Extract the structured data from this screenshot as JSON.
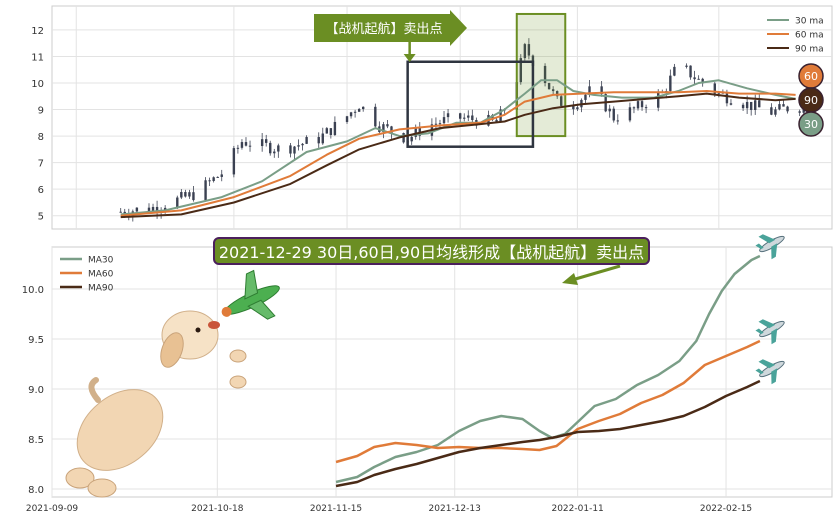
{
  "chart_data": [
    {
      "type": "line",
      "subtype": "candlestick",
      "x_range": [
        "2021-09-20",
        "2022-03-10"
      ],
      "ylim": [
        4.5,
        12.9
      ],
      "yticks": [
        5,
        6,
        7,
        8,
        9,
        10,
        11,
        12
      ],
      "grid": true,
      "legend_position": "top-right",
      "price_trend": [
        [
          "2021-09-20",
          5.15
        ],
        [
          "2021-09-28",
          5.3
        ],
        [
          "2021-10-08",
          5.8
        ],
        [
          "2021-10-15",
          6.6
        ],
        [
          "2021-10-20",
          7.8
        ],
        [
          "2021-10-30",
          7.5
        ],
        [
          "2021-11-08",
          7.9
        ],
        [
          "2021-11-14",
          8.6
        ],
        [
          "2021-11-18",
          9.2
        ],
        [
          "2021-11-23",
          8.4
        ],
        [
          "2021-11-30",
          7.9
        ],
        [
          "2021-12-05",
          8.4
        ],
        [
          "2021-12-12",
          8.7
        ],
        [
          "2021-12-18",
          8.6
        ],
        [
          "2021-12-22",
          8.5
        ],
        [
          "2021-12-26",
          9.6
        ],
        [
          "2021-12-29",
          11.3
        ],
        [
          "2022-01-02",
          10.4
        ],
        [
          "2022-01-06",
          9.3
        ],
        [
          "2022-01-10",
          9.2
        ],
        [
          "2022-01-15",
          9.8
        ],
        [
          "2022-01-20",
          8.7
        ],
        [
          "2022-01-25",
          9.0
        ],
        [
          "2022-02-01",
          9.6
        ],
        [
          "2022-02-05",
          10.7
        ],
        [
          "2022-02-10",
          10.1
        ],
        [
          "2022-02-15",
          9.6
        ],
        [
          "2022-02-22",
          9.2
        ],
        [
          "2022-02-28",
          8.9
        ],
        [
          "2022-03-05",
          9.1
        ]
      ],
      "series": [
        {
          "name": "30 ma",
          "color": "#7a9e87",
          "values": [
            [
              "2021-09-20",
              5.05
            ],
            [
              "2021-10-01",
              5.2
            ],
            [
              "2021-10-15",
              5.7
            ],
            [
              "2021-10-25",
              6.3
            ],
            [
              "2021-11-05",
              7.4
            ],
            [
              "2021-11-15",
              7.8
            ],
            [
              "2021-11-22",
              8.3
            ],
            [
              "2021-11-28",
              8.0
            ],
            [
              "2021-12-05",
              8.1
            ],
            [
              "2021-12-12",
              8.5
            ],
            [
              "2021-12-18",
              8.5
            ],
            [
              "2021-12-24",
              9.0
            ],
            [
              "2021-12-29",
              9.6
            ],
            [
              "2022-01-02",
              10.1
            ],
            [
              "2022-01-06",
              10.1
            ],
            [
              "2022-01-10",
              9.7
            ],
            [
              "2022-01-15",
              9.55
            ],
            [
              "2022-01-22",
              9.45
            ],
            [
              "2022-01-30",
              9.45
            ],
            [
              "2022-02-05",
              9.7
            ],
            [
              "2022-02-10",
              10.0
            ],
            [
              "2022-02-15",
              10.1
            ],
            [
              "2022-02-22",
              9.8
            ],
            [
              "2022-03-01",
              9.55
            ],
            [
              "2022-03-06",
              9.4
            ]
          ]
        },
        {
          "name": "60 ma",
          "color": "#e07b39",
          "values": [
            [
              "2021-09-20",
              5.0
            ],
            [
              "2021-10-05",
              5.2
            ],
            [
              "2021-10-18",
              5.7
            ],
            [
              "2021-11-01",
              6.5
            ],
            [
              "2021-11-10",
              7.3
            ],
            [
              "2021-11-18",
              7.9
            ],
            [
              "2021-11-28",
              8.25
            ],
            [
              "2021-12-08",
              8.4
            ],
            [
              "2021-12-18",
              8.5
            ],
            [
              "2021-12-24",
              8.8
            ],
            [
              "2021-12-29",
              9.3
            ],
            [
              "2022-01-05",
              9.55
            ],
            [
              "2022-01-12",
              9.6
            ],
            [
              "2022-01-20",
              9.65
            ],
            [
              "2022-01-28",
              9.65
            ],
            [
              "2022-02-05",
              9.65
            ],
            [
              "2022-02-12",
              9.7
            ],
            [
              "2022-02-20",
              9.6
            ],
            [
              "2022-03-01",
              9.6
            ],
            [
              "2022-03-06",
              9.55
            ]
          ]
        },
        {
          "name": "90 ma",
          "color": "#4a2a16",
          "values": [
            [
              "2021-09-20",
              4.95
            ],
            [
              "2021-10-05",
              5.05
            ],
            [
              "2021-10-18",
              5.5
            ],
            [
              "2021-11-01",
              6.2
            ],
            [
              "2021-11-10",
              6.9
            ],
            [
              "2021-11-18",
              7.5
            ],
            [
              "2021-11-28",
              7.95
            ],
            [
              "2021-12-08",
              8.3
            ],
            [
              "2021-12-18",
              8.45
            ],
            [
              "2021-12-24",
              8.55
            ],
            [
              "2021-12-29",
              8.8
            ],
            [
              "2022-01-05",
              9.05
            ],
            [
              "2022-01-12",
              9.2
            ],
            [
              "2022-01-20",
              9.3
            ],
            [
              "2022-01-28",
              9.4
            ],
            [
              "2022-02-05",
              9.5
            ],
            [
              "2022-02-12",
              9.6
            ],
            [
              "2022-02-20",
              9.45
            ],
            [
              "2022-03-01",
              9.35
            ],
            [
              "2022-03-06",
              9.4
            ]
          ]
        }
      ],
      "annotation": "【战机起航】卖出点",
      "end_markers": [
        {
          "label": "60",
          "color": "#e07b39"
        },
        {
          "label": "90",
          "color": "#4a2a16"
        },
        {
          "label": "30",
          "color": "#7a9e87"
        }
      ]
    },
    {
      "type": "line",
      "title": "2021-12-29 30日,60日,90日均线形成【战机起航】卖出点",
      "x_range": [
        "2021-09-09",
        "2022-03-12"
      ],
      "xticks": [
        "2021-09-09",
        "2021-10-18",
        "2021-11-15",
        "2021-12-13",
        "2022-01-11",
        "2022-02-15"
      ],
      "ylim": [
        7.92,
        10.42
      ],
      "yticks": [
        8.0,
        8.5,
        9.0,
        9.5,
        10.0
      ],
      "grid": true,
      "legend_position": "top-left",
      "series": [
        {
          "name": "MA30",
          "color": "#7a9e87",
          "values": [
            [
              "2021-11-15",
              8.07
            ],
            [
              "2021-11-20",
              8.12
            ],
            [
              "2021-11-24",
              8.22
            ],
            [
              "2021-11-29",
              8.32
            ],
            [
              "2021-12-04",
              8.37
            ],
            [
              "2021-12-09",
              8.44
            ],
            [
              "2021-12-14",
              8.58
            ],
            [
              "2021-12-19",
              8.68
            ],
            [
              "2021-12-24",
              8.73
            ],
            [
              "2021-12-29",
              8.7
            ],
            [
              "2022-01-02",
              8.58
            ],
            [
              "2022-01-05",
              8.51
            ],
            [
              "2022-01-08",
              8.55
            ],
            [
              "2022-01-11",
              8.67
            ],
            [
              "2022-01-15",
              8.83
            ],
            [
              "2022-01-20",
              8.9
            ],
            [
              "2022-01-25",
              9.04
            ],
            [
              "2022-01-30",
              9.14
            ],
            [
              "2022-02-04",
              9.28
            ],
            [
              "2022-02-08",
              9.48
            ],
            [
              "2022-02-11",
              9.75
            ],
            [
              "2022-02-14",
              9.98
            ],
            [
              "2022-02-17",
              10.15
            ],
            [
              "2022-02-21",
              10.29
            ],
            [
              "2022-02-23",
              10.33
            ]
          ]
        },
        {
          "name": "MA60",
          "color": "#e07b39",
          "values": [
            [
              "2021-11-15",
              8.27
            ],
            [
              "2021-11-20",
              8.33
            ],
            [
              "2021-11-24",
              8.42
            ],
            [
              "2021-11-29",
              8.46
            ],
            [
              "2021-12-04",
              8.44
            ],
            [
              "2021-12-09",
              8.41
            ],
            [
              "2021-12-14",
              8.42
            ],
            [
              "2021-12-19",
              8.41
            ],
            [
              "2021-12-24",
              8.41
            ],
            [
              "2021-12-29",
              8.4
            ],
            [
              "2022-01-02",
              8.39
            ],
            [
              "2022-01-06",
              8.43
            ],
            [
              "2022-01-11",
              8.6
            ],
            [
              "2022-01-16",
              8.68
            ],
            [
              "2022-01-21",
              8.75
            ],
            [
              "2022-01-26",
              8.86
            ],
            [
              "2022-01-31",
              8.94
            ],
            [
              "2022-02-05",
              9.06
            ],
            [
              "2022-02-10",
              9.24
            ],
            [
              "2022-02-15",
              9.33
            ],
            [
              "2022-02-20",
              9.42
            ],
            [
              "2022-02-23",
              9.48
            ]
          ]
        },
        {
          "name": "MA90",
          "color": "#4a2a16",
          "values": [
            [
              "2021-11-15",
              8.03
            ],
            [
              "2021-11-20",
              8.07
            ],
            [
              "2021-11-24",
              8.14
            ],
            [
              "2021-11-29",
              8.2
            ],
            [
              "2021-12-04",
              8.25
            ],
            [
              "2021-12-09",
              8.31
            ],
            [
              "2021-12-14",
              8.37
            ],
            [
              "2021-12-19",
              8.41
            ],
            [
              "2021-12-24",
              8.44
            ],
            [
              "2021-12-29",
              8.47
            ],
            [
              "2022-01-02",
              8.49
            ],
            [
              "2022-01-06",
              8.52
            ],
            [
              "2022-01-11",
              8.57
            ],
            [
              "2022-01-16",
              8.58
            ],
            [
              "2022-01-21",
              8.6
            ],
            [
              "2022-01-26",
              8.64
            ],
            [
              "2022-01-31",
              8.68
            ],
            [
              "2022-02-05",
              8.73
            ],
            [
              "2022-02-10",
              8.82
            ],
            [
              "2022-02-15",
              8.93
            ],
            [
              "2022-02-20",
              9.02
            ],
            [
              "2022-02-23",
              9.08
            ]
          ]
        }
      ]
    }
  ]
}
